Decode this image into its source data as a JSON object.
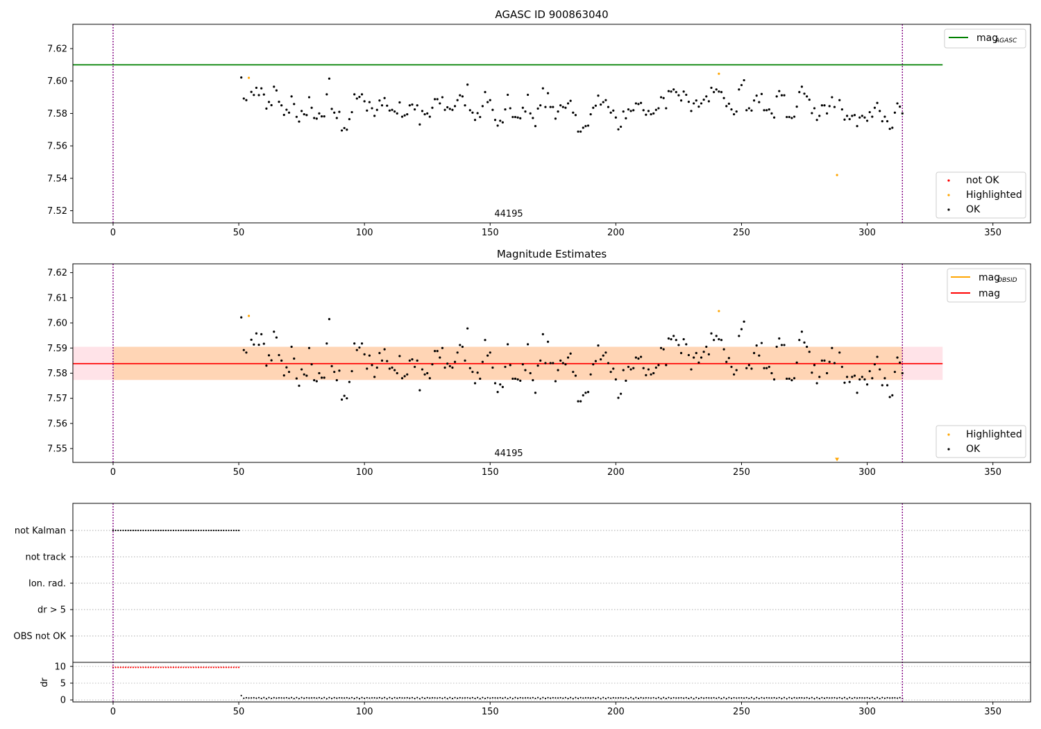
{
  "chart_data": [
    {
      "type": "scatter",
      "title": "AGASC ID 900863040",
      "xlim": [
        -16,
        365
      ],
      "ylim": [
        7.5125,
        7.635
      ],
      "xticks": [
        0,
        50,
        100,
        150,
        200,
        250,
        300,
        350
      ],
      "yticks": [
        7.52,
        7.54,
        7.56,
        7.58,
        7.6,
        7.62
      ],
      "ytick_labels": [
        "7.52",
        "7.54",
        "7.56",
        "7.58",
        "7.60",
        "7.62"
      ],
      "annotation": "44195",
      "annotation_x": 157,
      "obs_start": 0,
      "obs_end": 314,
      "hline": {
        "label_main": "mag",
        "label_sub": "AGASC",
        "value": 7.61,
        "x_end": 330,
        "color": "#008000"
      },
      "legend_lines": [
        {
          "label": "mag",
          "sub": "AGASC",
          "color": "#008000"
        }
      ],
      "legend_points": [
        {
          "label": "not OK",
          "color": "#ff0000"
        },
        {
          "label": "Highlighted",
          "color": "#ffa500"
        },
        {
          "label": "OK",
          "color": "#000000"
        }
      ],
      "highlighted": [
        [
          54,
          7.602
        ],
        [
          241,
          7.6045
        ],
        [
          288,
          7.542
        ]
      ]
    },
    {
      "type": "scatter",
      "title": "Magnitude Estimates",
      "xlim": [
        -16,
        365
      ],
      "ylim": [
        7.5445,
        7.6235
      ],
      "xticks": [
        0,
        50,
        100,
        150,
        200,
        250,
        300,
        350
      ],
      "yticks": [
        7.55,
        7.56,
        7.57,
        7.58,
        7.59,
        7.6,
        7.61,
        7.62
      ],
      "ytick_labels": [
        "7.55",
        "7.56",
        "7.57",
        "7.58",
        "7.59",
        "7.60",
        "7.61",
        "7.62"
      ],
      "annotation": "44195",
      "annotation_x": 157,
      "obs_start": 0,
      "obs_end": 314,
      "mag_mean": 7.5838,
      "mag_band": [
        7.5773,
        7.5905
      ],
      "mag_x_end": 330,
      "legend_lines": [
        {
          "label": "mag",
          "sub": "OBSID",
          "color": "#ffa500"
        },
        {
          "label": "mag",
          "sub": "",
          "color": "#ff0000"
        }
      ],
      "legend_points": [
        {
          "label": "Highlighted",
          "color": "#ffa500"
        },
        {
          "label": "OK",
          "color": "#000000"
        }
      ],
      "highlighted": [
        [
          54,
          7.6028
        ],
        [
          241,
          7.6047
        ]
      ],
      "offscale_marker": [
        288,
        7.5455
      ]
    },
    {
      "type": "scatter",
      "title": "",
      "xlim": [
        -16,
        365
      ],
      "xticks": [
        0,
        50,
        100,
        150,
        200,
        250,
        300,
        350
      ],
      "categories": [
        "not Kalman",
        "not track",
        "Ion. rad.",
        "dr > 5",
        "OBS not OK"
      ],
      "not_kalman_range": [
        0,
        50
      ],
      "obs_start": 0,
      "obs_end": 314,
      "dr_yticks": [
        0,
        5,
        10
      ],
      "dr_ylabel": "dr",
      "dr_ylim": [
        -0.6,
        11.2
      ],
      "dr_high_value": 9.7,
      "dr_high_range": [
        0,
        50
      ],
      "dr_low_range": [
        51,
        314
      ]
    }
  ],
  "mag_series": [
    [
      51,
      7.6022
    ],
    [
      52,
      7.5892
    ],
    [
      53,
      7.5882
    ],
    [
      55,
      7.5933
    ],
    [
      56,
      7.5914
    ],
    [
      57,
      7.5958
    ],
    [
      58,
      7.5913
    ],
    [
      59,
      7.5955
    ],
    [
      60,
      7.5917
    ],
    [
      61,
      7.583
    ],
    [
      62,
      7.5871
    ],
    [
      63,
      7.5851
    ],
    [
      64,
      7.5965
    ],
    [
      65,
      7.5942
    ],
    [
      66,
      7.5872
    ],
    [
      67,
      7.585
    ],
    [
      68,
      7.5791
    ],
    [
      69,
      7.5823
    ],
    [
      70,
      7.5805
    ],
    [
      71,
      7.5905
    ],
    [
      72,
      7.5858
    ],
    [
      73,
      7.5779
    ],
    [
      74,
      7.575
    ],
    [
      75,
      7.5815
    ],
    [
      76,
      7.5795
    ],
    [
      77,
      7.579
    ],
    [
      78,
      7.59
    ],
    [
      79,
      7.5835
    ],
    [
      80,
      7.5772
    ],
    [
      81,
      7.5768
    ],
    [
      82,
      7.58
    ],
    [
      83,
      7.5782
    ],
    [
      84,
      7.5782
    ],
    [
      85,
      7.5918
    ],
    [
      86,
      7.6015
    ],
    [
      87,
      7.5828
    ],
    [
      88,
      7.5805
    ],
    [
      89,
      7.5772
    ],
    [
      90,
      7.581
    ],
    [
      91,
      7.5695
    ],
    [
      92,
      7.571
    ],
    [
      93,
      7.57
    ],
    [
      94,
      7.5765
    ],
    [
      95,
      7.5808
    ],
    [
      96,
      7.5918
    ],
    [
      97,
      7.5892
    ],
    [
      98,
      7.5902
    ],
    [
      99,
      7.5918
    ],
    [
      100,
      7.5875
    ],
    [
      101,
      7.5818
    ],
    [
      102,
      7.587
    ],
    [
      103,
      7.5832
    ],
    [
      104,
      7.5785
    ],
    [
      105,
      7.5822
    ],
    [
      106,
      7.588
    ],
    [
      107,
      7.585
    ],
    [
      108,
      7.5895
    ],
    [
      109,
      7.5848
    ],
    [
      110,
      7.5818
    ],
    [
      111,
      7.5822
    ],
    [
      112,
      7.5812
    ],
    [
      113,
      7.58
    ],
    [
      114,
      7.5868
    ],
    [
      115,
      7.578
    ],
    [
      116,
      7.5788
    ],
    [
      117,
      7.5795
    ],
    [
      118,
      7.585
    ],
    [
      119,
      7.5855
    ],
    [
      120,
      7.5825
    ],
    [
      121,
      7.585
    ],
    [
      122,
      7.5732
    ],
    [
      123,
      7.5815
    ],
    [
      124,
      7.5795
    ],
    [
      125,
      7.58
    ],
    [
      126,
      7.578
    ],
    [
      127,
      7.5835
    ],
    [
      128,
      7.5888
    ],
    [
      129,
      7.5888
    ],
    [
      130,
      7.5862
    ],
    [
      131,
      7.59
    ],
    [
      132,
      7.5822
    ],
    [
      133,
      7.5838
    ],
    [
      134,
      7.5828
    ],
    [
      135,
      7.5822
    ],
    [
      136,
      7.5845
    ],
    [
      137,
      7.5882
    ],
    [
      138,
      7.5912
    ],
    [
      139,
      7.5905
    ],
    [
      140,
      7.585
    ],
    [
      141,
      7.5978
    ],
    [
      142,
      7.582
    ],
    [
      143,
      7.5805
    ],
    [
      144,
      7.576
    ],
    [
      145,
      7.5802
    ],
    [
      146,
      7.5778
    ],
    [
      147,
      7.5845
    ],
    [
      148,
      7.5932
    ],
    [
      149,
      7.587
    ],
    [
      150,
      7.5882
    ],
    [
      151,
      7.5822
    ],
    [
      152,
      7.576
    ],
    [
      153,
      7.5725
    ],
    [
      154,
      7.5755
    ],
    [
      155,
      7.5745
    ],
    [
      156,
      7.5825
    ],
    [
      157,
      7.5915
    ],
    [
      158,
      7.5832
    ],
    [
      159,
      7.5778
    ],
    [
      160,
      7.5778
    ],
    [
      161,
      7.5775
    ],
    [
      162,
      7.577
    ],
    [
      163,
      7.5835
    ],
    [
      164,
      7.5812
    ],
    [
      165,
      7.5915
    ],
    [
      166,
      7.58
    ],
    [
      167,
      7.5772
    ],
    [
      168,
      7.5722
    ],
    [
      169,
      7.583
    ],
    [
      170,
      7.585
    ],
    [
      171,
      7.5955
    ],
    [
      172,
      7.584
    ],
    [
      173,
      7.5925
    ],
    [
      174,
      7.584
    ],
    [
      175,
      7.584
    ],
    [
      176,
      7.5768
    ],
    [
      177,
      7.5812
    ],
    [
      178,
      7.585
    ],
    [
      179,
      7.584
    ],
    [
      180,
      7.5835
    ],
    [
      181,
      7.5862
    ],
    [
      182,
      7.5878
    ],
    [
      183,
      7.5805
    ],
    [
      184,
      7.579
    ],
    [
      185,
      7.5688
    ],
    [
      186,
      7.5688
    ],
    [
      187,
      7.5712
    ],
    [
      188,
      7.5722
    ],
    [
      189,
      7.5725
    ],
    [
      190,
      7.5795
    ],
    [
      191,
      7.5835
    ],
    [
      192,
      7.5848
    ],
    [
      193,
      7.591
    ],
    [
      194,
      7.5855
    ],
    [
      195,
      7.587
    ],
    [
      196,
      7.5882
    ],
    [
      197,
      7.584
    ],
    [
      198,
      7.5805
    ],
    [
      199,
      7.5818
    ],
    [
      200,
      7.5775
    ],
    [
      201,
      7.5702
    ],
    [
      202,
      7.5718
    ],
    [
      203,
      7.5812
    ],
    [
      204,
      7.577
    ],
    [
      205,
      7.5825
    ],
    [
      206,
      7.5815
    ],
    [
      207,
      7.582
    ],
    [
      208,
      7.5862
    ],
    [
      209,
      7.5858
    ],
    [
      210,
      7.5865
    ],
    [
      211,
      7.582
    ],
    [
      212,
      7.5792
    ],
    [
      213,
      7.5815
    ],
    [
      214,
      7.5795
    ],
    [
      215,
      7.58
    ],
    [
      216,
      7.5822
    ],
    [
      217,
      7.5832
    ],
    [
      218,
      7.59
    ],
    [
      219,
      7.5895
    ],
    [
      220,
      7.5832
    ],
    [
      221,
      7.5938
    ],
    [
      222,
      7.5935
    ],
    [
      223,
      7.5948
    ],
    [
      224,
      7.5932
    ],
    [
      225,
      7.5912
    ],
    [
      226,
      7.588
    ],
    [
      227,
      7.5935
    ],
    [
      228,
      7.5915
    ],
    [
      229,
      7.5872
    ],
    [
      230,
      7.5815
    ],
    [
      231,
      7.5862
    ],
    [
      232,
      7.588
    ],
    [
      233,
      7.5842
    ],
    [
      234,
      7.5862
    ],
    [
      235,
      7.5885
    ],
    [
      236,
      7.5905
    ],
    [
      237,
      7.5875
    ],
    [
      238,
      7.5958
    ],
    [
      239,
      7.5932
    ],
    [
      240,
      7.5948
    ],
    [
      241,
      7.5935
    ],
    [
      242,
      7.5932
    ],
    [
      243,
      7.5895
    ],
    [
      244,
      7.5845
    ],
    [
      245,
      7.586
    ],
    [
      246,
      7.5825
    ],
    [
      247,
      7.5795
    ],
    [
      248,
      7.5812
    ],
    [
      249,
      7.5948
    ],
    [
      250,
      7.5975
    ],
    [
      251,
      7.6005
    ],
    [
      252,
      7.582
    ],
    [
      253,
      7.5832
    ],
    [
      254,
      7.5818
    ],
    [
      255,
      7.588
    ],
    [
      256,
      7.591
    ],
    [
      257,
      7.587
    ],
    [
      258,
      7.592
    ],
    [
      259,
      7.582
    ],
    [
      260,
      7.582
    ],
    [
      261,
      7.5825
    ],
    [
      262,
      7.58
    ],
    [
      263,
      7.5775
    ],
    [
      264,
      7.5905
    ],
    [
      265,
      7.5938
    ],
    [
      266,
      7.5912
    ],
    [
      267,
      7.5912
    ],
    [
      268,
      7.5778
    ],
    [
      269,
      7.5778
    ],
    [
      270,
      7.5772
    ],
    [
      271,
      7.578
    ],
    [
      272,
      7.5842
    ],
    [
      273,
      7.5932
    ],
    [
      274,
      7.5965
    ],
    [
      275,
      7.5922
    ],
    [
      276,
      7.5905
    ],
    [
      277,
      7.5885
    ],
    [
      278,
      7.5802
    ],
    [
      279,
      7.5832
    ],
    [
      280,
      7.576
    ],
    [
      281,
      7.5785
    ],
    [
      282,
      7.585
    ],
    [
      283,
      7.585
    ],
    [
      284,
      7.58
    ],
    [
      285,
      7.5845
    ],
    [
      286,
      7.59
    ],
    [
      287,
      7.584
    ],
    [
      289,
      7.5882
    ],
    [
      290,
      7.5825
    ],
    [
      291,
      7.5762
    ],
    [
      292,
      7.5785
    ],
    [
      293,
      7.5765
    ],
    [
      294,
      7.5785
    ],
    [
      295,
      7.579
    ],
    [
      296,
      7.5722
    ],
    [
      297,
      7.5775
    ],
    [
      298,
      7.5785
    ],
    [
      299,
      7.5775
    ],
    [
      300,
      7.5755
    ],
    [
      301,
      7.5808
    ],
    [
      302,
      7.578
    ],
    [
      303,
      7.5835
    ],
    [
      304,
      7.5865
    ],
    [
      305,
      7.5815
    ],
    [
      306,
      7.5752
    ],
    [
      307,
      7.578
    ],
    [
      308,
      7.5752
    ],
    [
      309,
      7.5705
    ],
    [
      310,
      7.5712
    ],
    [
      311,
      7.5805
    ],
    [
      312,
      7.5862
    ],
    [
      313,
      7.5842
    ],
    [
      314,
      7.58
    ]
  ]
}
